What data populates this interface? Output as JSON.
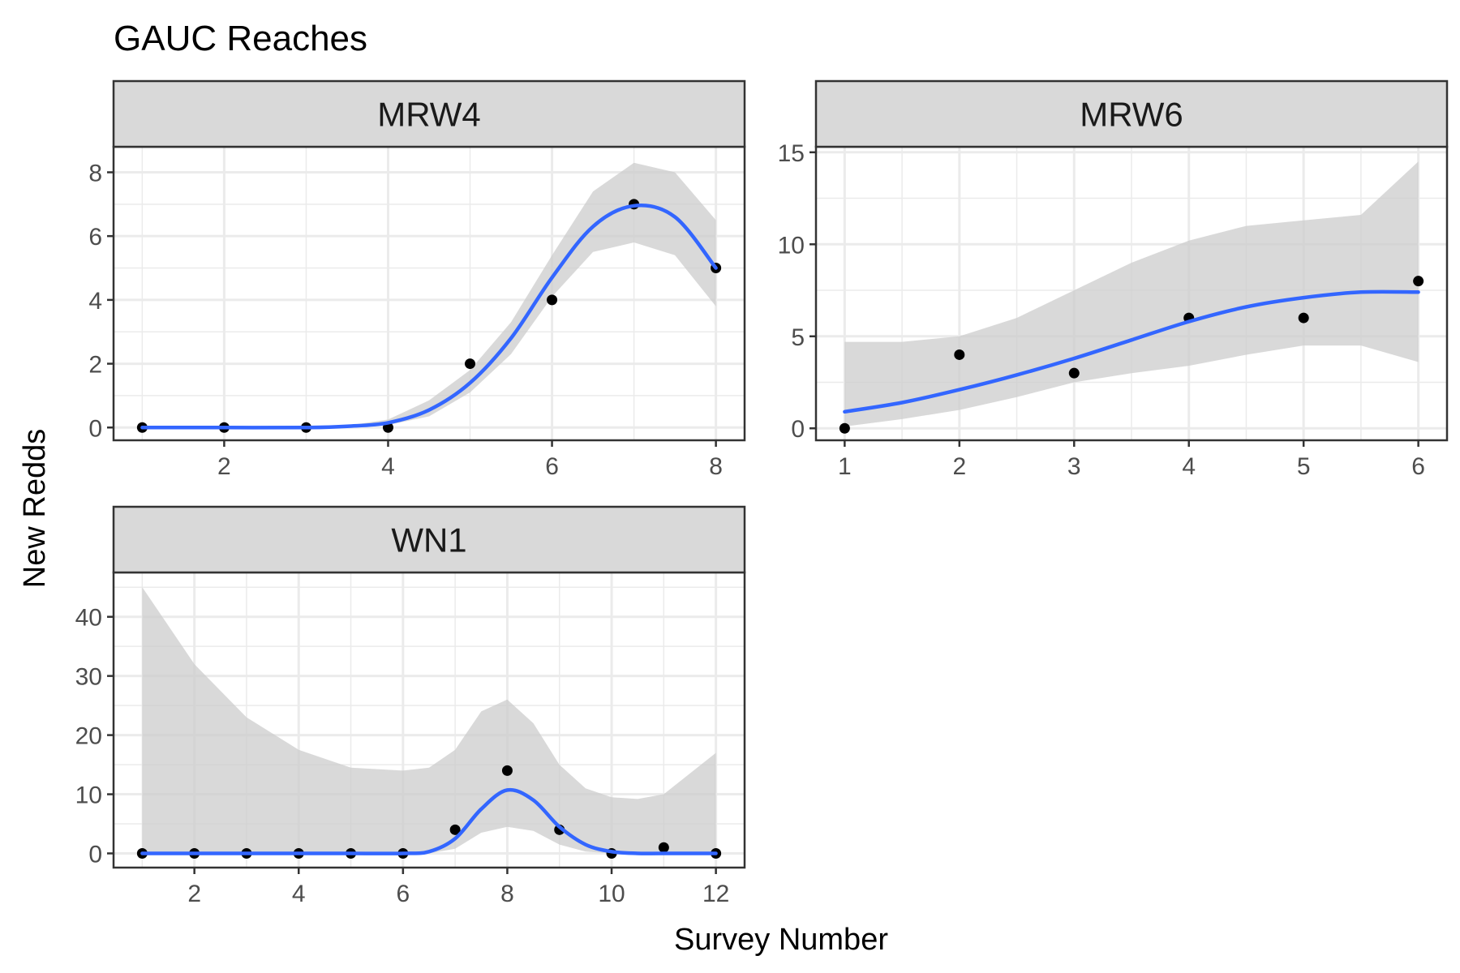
{
  "title": "GAUC Reaches",
  "xlabel": "Survey Number",
  "ylabel": "New Redds",
  "colors": {
    "smooth_line": "#3366ff",
    "ribbon": "#cccccc",
    "points": "#000000",
    "strip_fill": "#d9d9d9",
    "grid": "#ebebeb",
    "panel_border": "#333333"
  },
  "chart_data": [
    {
      "type": "scatter",
      "panel": "MRW4",
      "x": [
        1,
        2,
        3,
        4,
        5,
        6,
        7,
        8
      ],
      "y": [
        0,
        0,
        0,
        0,
        2,
        4,
        7,
        5
      ],
      "smooth": {
        "x": [
          1,
          2,
          3,
          3.5,
          4,
          4.5,
          5,
          5.5,
          6,
          6.5,
          7,
          7.5,
          8
        ],
        "fit": [
          0,
          0,
          0,
          0.04,
          0.15,
          0.55,
          1.4,
          2.8,
          4.7,
          6.3,
          6.95,
          6.6,
          5
        ],
        "lower": [
          0,
          0,
          0,
          0.02,
          0.08,
          0.35,
          1.1,
          2.3,
          4.1,
          5.5,
          5.8,
          5.4,
          3.8
        ],
        "upper": [
          0,
          0,
          0,
          0.06,
          0.25,
          0.85,
          1.8,
          3.3,
          5.4,
          7.4,
          8.3,
          8.0,
          6.5
        ]
      },
      "xlim": [
        0.65,
        8.35
      ],
      "ylim": [
        -0.4,
        8.8
      ],
      "xticks": [
        2,
        4,
        6,
        8
      ],
      "yticks": [
        0,
        2,
        4,
        6,
        8
      ]
    },
    {
      "type": "scatter",
      "panel": "MRW6",
      "x": [
        1,
        2,
        3,
        4,
        5,
        6
      ],
      "y": [
        0,
        4,
        3,
        6,
        6,
        8
      ],
      "smooth": {
        "x": [
          1,
          1.5,
          2,
          2.5,
          3,
          3.5,
          4,
          4.5,
          5,
          5.5,
          6
        ],
        "fit": [
          0.9,
          1.4,
          2.1,
          2.9,
          3.8,
          4.8,
          5.8,
          6.6,
          7.1,
          7.4,
          7.4
        ],
        "lower": [
          0.1,
          0.5,
          1.0,
          1.7,
          2.5,
          3.0,
          3.4,
          4.0,
          4.5,
          4.5,
          3.6
        ],
        "upper": [
          4.7,
          4.7,
          5.0,
          6.0,
          7.5,
          9.0,
          10.2,
          11.0,
          11.3,
          11.6,
          14.5
        ]
      },
      "xlim": [
        0.75,
        6.25
      ],
      "ylim": [
        -0.65,
        15.3
      ],
      "xticks": [
        1,
        2,
        3,
        4,
        5,
        6
      ],
      "yticks": [
        0,
        5,
        10,
        15
      ]
    },
    {
      "type": "scatter",
      "panel": "WN1",
      "x": [
        1,
        2,
        3,
        4,
        5,
        6,
        7,
        8,
        9,
        10,
        11,
        12
      ],
      "y": [
        0,
        0,
        0,
        0,
        0,
        0,
        4,
        14,
        4,
        0,
        1,
        0
      ],
      "smooth": {
        "x": [
          1,
          2,
          3,
          4,
          5,
          6,
          6.5,
          7,
          7.5,
          8,
          8.5,
          9,
          9.5,
          10,
          10.5,
          11,
          12
        ],
        "fit": [
          0,
          0,
          0,
          0,
          0,
          0,
          0.3,
          2.5,
          7.5,
          10.7,
          9,
          4.5,
          1.5,
          0.3,
          0,
          0,
          0
        ],
        "lower": [
          0,
          0,
          0,
          0,
          0,
          0,
          0,
          0.8,
          3.5,
          4.5,
          3.8,
          1.5,
          0.3,
          0,
          0,
          0,
          0
        ],
        "upper": [
          45,
          32,
          23,
          17.5,
          14.5,
          14,
          14.5,
          17.5,
          24,
          26,
          22,
          15,
          11,
          9.5,
          9.2,
          10,
          17
        ]
      },
      "xlim": [
        0.45,
        12.55
      ],
      "ylim": [
        -2.4,
        47.5
      ],
      "xticks": [
        2,
        4,
        6,
        8,
        10,
        12
      ],
      "yticks": [
        0,
        10,
        20,
        30,
        40
      ]
    }
  ]
}
